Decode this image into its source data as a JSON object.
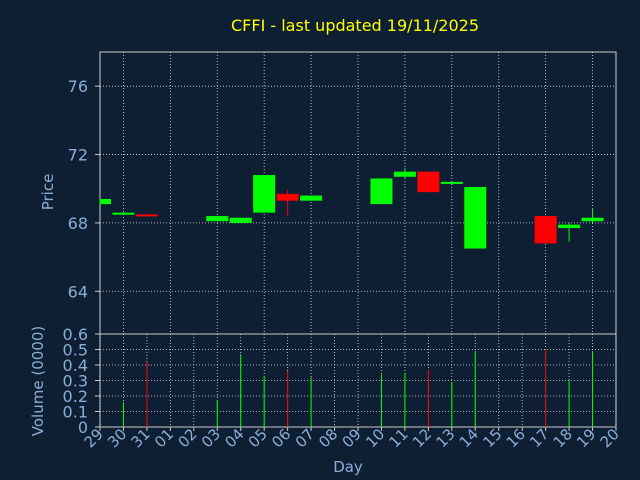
{
  "chart_data": {
    "type": "candlestick",
    "title": "CFFI - last updated 19/11/2025",
    "xlabel": "Day",
    "ylabel_price": "Price",
    "ylabel_volume": "Volume (0000)",
    "price_ylim": [
      61.5,
      78.0
    ],
    "price_ticks": [
      "64",
      "68",
      "72",
      "76"
    ],
    "price_tick_values": [
      64,
      68,
      72,
      76
    ],
    "volume_ylim": [
      0,
      0.6
    ],
    "volume_ticks": [
      "0",
      "0.1",
      "0.2",
      "0.3",
      "0.4",
      "0.5",
      "0.6"
    ],
    "volume_tick_values": [
      0,
      0.1,
      0.2,
      0.3,
      0.4,
      0.5,
      0.6
    ],
    "x_ticks": [
      "29",
      "30",
      "31",
      "01",
      "02",
      "03",
      "04",
      "05",
      "06",
      "07",
      "08",
      "09",
      "10",
      "11",
      "12",
      "13",
      "14",
      "15",
      "16",
      "17",
      "18",
      "19",
      "20"
    ],
    "grid": true,
    "colors": {
      "up": "#00ff00",
      "down": "#ff0000",
      "title": "#ffff00",
      "axis_text": "#8aaed6",
      "background": "#0f1f33",
      "grid": "#ffffff"
    },
    "candles": [
      {
        "day": "29",
        "open": 69.1,
        "high": 69.4,
        "low": 69.1,
        "close": 69.4,
        "volume": 0.0
      },
      {
        "day": "30",
        "open": 68.5,
        "high": 68.6,
        "low": 68.5,
        "close": 68.6,
        "volume": 0.16
      },
      {
        "day": "31",
        "open": 68.5,
        "high": 68.5,
        "low": 68.4,
        "close": 68.4,
        "volume": 0.42
      },
      {
        "day": "03",
        "open": 68.1,
        "high": 68.4,
        "low": 68.1,
        "close": 68.4,
        "volume": 0.17
      },
      {
        "day": "04",
        "open": 68.0,
        "high": 68.3,
        "low": 68.0,
        "close": 68.3,
        "volume": 0.47
      },
      {
        "day": "05",
        "open": 68.6,
        "high": 70.8,
        "low": 68.6,
        "close": 70.8,
        "volume": 0.33
      },
      {
        "day": "06",
        "open": 69.7,
        "high": 69.9,
        "low": 68.4,
        "close": 69.3,
        "volume": 0.36
      },
      {
        "day": "07",
        "open": 69.3,
        "high": 69.6,
        "low": 69.3,
        "close": 69.6,
        "volume": 0.32
      },
      {
        "day": "10",
        "open": 69.1,
        "high": 70.6,
        "low": 69.1,
        "close": 70.6,
        "volume": 0.34
      },
      {
        "day": "11",
        "open": 70.7,
        "high": 71.2,
        "low": 70.6,
        "close": 71.0,
        "volume": 0.35
      },
      {
        "day": "12",
        "open": 71.0,
        "high": 71.0,
        "low": 69.8,
        "close": 69.8,
        "volume": 0.37
      },
      {
        "day": "13",
        "open": 70.3,
        "high": 70.4,
        "low": 70.3,
        "close": 70.4,
        "volume": 0.29
      },
      {
        "day": "14",
        "open": 66.5,
        "high": 70.1,
        "low": 66.5,
        "close": 70.1,
        "volume": 0.49
      },
      {
        "day": "17",
        "open": 68.4,
        "high": 68.4,
        "low": 66.8,
        "close": 66.8,
        "volume": 0.5
      },
      {
        "day": "18",
        "open": 67.7,
        "high": 68.0,
        "low": 66.9,
        "close": 67.9,
        "volume": 0.3
      },
      {
        "day": "19",
        "open": 68.1,
        "high": 68.8,
        "low": 68.0,
        "close": 68.3,
        "volume": 0.49
      }
    ]
  }
}
